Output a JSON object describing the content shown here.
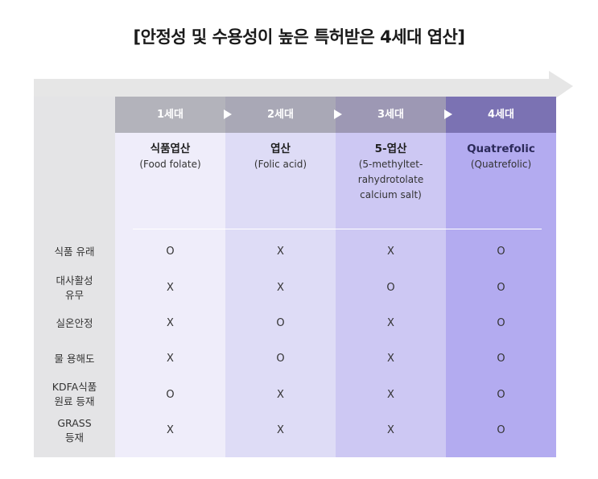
{
  "title": "[안정성 및 수용성이 높은 특허받은 4세대 엽산]",
  "generations": [
    {
      "label": "1세대",
      "name": "식품엽산",
      "sub": [
        "(Food folate)"
      ]
    },
    {
      "label": "2세대",
      "name": "엽산",
      "sub": [
        "(Folic acid)"
      ]
    },
    {
      "label": "3세대",
      "name": "5-엽산",
      "sub": [
        "(5-methyltet-",
        "rahydrotolate",
        "calcium salt)"
      ]
    },
    {
      "label": "4세대",
      "name": "Quatrefolic",
      "sub": [
        "(Quatrefolic)"
      ]
    }
  ],
  "rows": [
    {
      "label": [
        "식품 유래"
      ],
      "values": [
        "O",
        "X",
        "X",
        "O"
      ]
    },
    {
      "label": [
        "대사활성",
        "유무"
      ],
      "values": [
        "X",
        "X",
        "O",
        "O"
      ]
    },
    {
      "label": [
        "실온안정"
      ],
      "values": [
        "X",
        "O",
        "X",
        "O"
      ]
    },
    {
      "label": [
        "물 용해도"
      ],
      "values": [
        "X",
        "O",
        "X",
        "O"
      ]
    },
    {
      "label": [
        "KDFA식품",
        "원료 등재"
      ],
      "values": [
        "O",
        "X",
        "X",
        "O"
      ]
    },
    {
      "label": [
        "GRASS",
        "등재"
      ],
      "values": [
        "X",
        "X",
        "X",
        "O"
      ]
    }
  ],
  "colors": {
    "arrow": "#e6e6e6",
    "header_1": "#b3b3bb",
    "header_4": "#7b72b3",
    "col_4": "#b3abf0"
  }
}
